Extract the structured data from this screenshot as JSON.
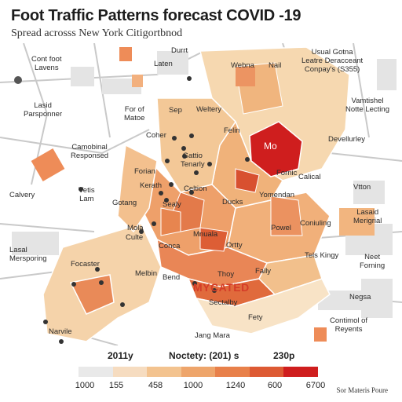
{
  "header": {
    "title": "Foot Traffic Patterns forecast COVID -19",
    "subtitle": "Spread acrosss New York Citigortbnod"
  },
  "map_labels": [
    {
      "text": "Durrt"
    },
    {
      "text": "Laten"
    },
    {
      "text": "Cont foot\nLavens"
    },
    {
      "text": "Webna"
    },
    {
      "text": "Nail"
    },
    {
      "text": "Usual Gotna\nLeatre Deracceant\nConpay's (S355)"
    },
    {
      "text": "Lasid\nParsponner"
    },
    {
      "text": "For of\nMatoe"
    },
    {
      "text": "Sep"
    },
    {
      "text": "Weltery"
    },
    {
      "text": "Vamtishel\nNotte Lecting"
    },
    {
      "text": "Coher"
    },
    {
      "text": "Felin"
    },
    {
      "text": "Mo"
    },
    {
      "text": "Devellurley"
    },
    {
      "text": "Camobinal\nResponsed"
    },
    {
      "text": "Gattio\nTenarly"
    },
    {
      "text": "Fornic"
    },
    {
      "text": "Forian"
    },
    {
      "text": "Kerath"
    },
    {
      "text": "Celtion"
    },
    {
      "text": "Sealy"
    },
    {
      "text": "Calical"
    },
    {
      "text": "Vtton"
    },
    {
      "text": "Calvery"
    },
    {
      "text": "Vetis\nLam"
    },
    {
      "text": "Gotang"
    },
    {
      "text": "Yomendan"
    },
    {
      "text": "Ducks"
    },
    {
      "text": "Lasaid\nMerigrial"
    },
    {
      "text": "Coniuling"
    },
    {
      "text": "Mola"
    },
    {
      "text": "Culte"
    },
    {
      "text": "Mnuala"
    },
    {
      "text": "Powel"
    },
    {
      "text": "Lasal\nMersporing"
    },
    {
      "text": "Conca"
    },
    {
      "text": "Ortty"
    },
    {
      "text": "Tels Kingy"
    },
    {
      "text": "Neet\nForning"
    },
    {
      "text": "Focaster"
    },
    {
      "text": "Melbin"
    },
    {
      "text": "Bend"
    },
    {
      "text": "Thoy"
    },
    {
      "text": "Fally"
    },
    {
      "text": "MYCATED"
    },
    {
      "text": "Negsa"
    },
    {
      "text": "Sectalby"
    },
    {
      "text": "Fety"
    },
    {
      "text": "Narvile"
    },
    {
      "text": "Contimol of\nReyents"
    },
    {
      "text": "Jang Mara"
    }
  ],
  "legend": {
    "label_left": "2011y",
    "label_center": "Noctety: (201) s",
    "label_right": "230p",
    "colors": [
      "#e9e9e9",
      "#f6dcc0",
      "#f3c38f",
      "#eea56b",
      "#e8804a",
      "#dd5a33",
      "#cf1e1e"
    ],
    "ticks": [
      "1000",
      "155",
      "458",
      "1000",
      "1240",
      "600",
      "6700"
    ]
  },
  "source": "Sor Materis Poure"
}
